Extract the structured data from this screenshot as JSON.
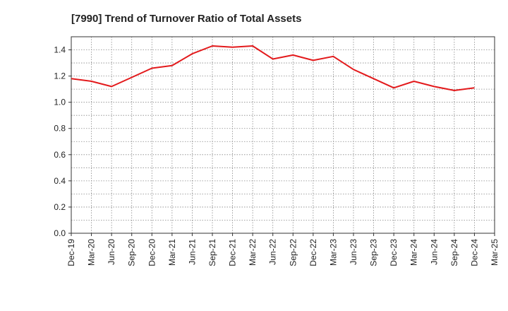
{
  "chart_data": {
    "type": "line",
    "title": "[7990]  Trend of Turnover Ratio of Total Assets",
    "xlabel": "",
    "ylabel": "",
    "ylim": [
      0,
      1.5
    ],
    "yticks": [
      "0.0",
      "0.2",
      "0.4",
      "0.6",
      "0.8",
      "1.0",
      "1.2",
      "1.4"
    ],
    "x": [
      "Dec-19",
      "Mar-20",
      "Jun-20",
      "Sep-20",
      "Dec-20",
      "Mar-21",
      "Jun-21",
      "Sep-21",
      "Dec-21",
      "Mar-22",
      "Jun-22",
      "Sep-22",
      "Dec-22",
      "Mar-23",
      "Jun-23",
      "Sep-23",
      "Dec-23",
      "Mar-24",
      "Jun-24",
      "Sep-24",
      "Dec-24",
      "Mar-25"
    ],
    "grid": true,
    "series": [
      {
        "color": "#e31a1c",
        "values": [
          1.18,
          1.16,
          1.12,
          1.19,
          1.26,
          1.28,
          1.37,
          1.43,
          1.42,
          1.43,
          1.33,
          1.36,
          1.32,
          1.35,
          1.25,
          1.18,
          1.11,
          1.16,
          1.12,
          1.09,
          1.11,
          null
        ]
      }
    ]
  }
}
